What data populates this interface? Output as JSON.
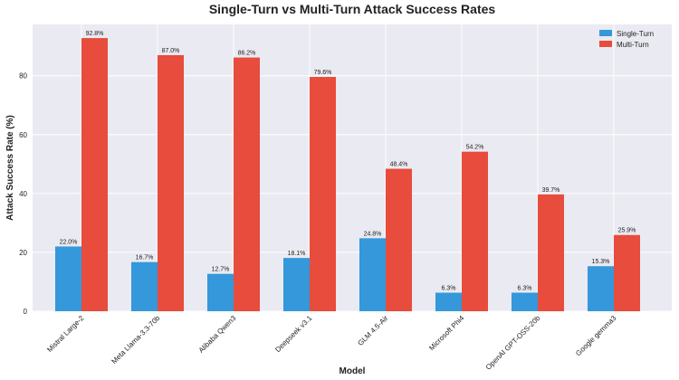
{
  "chart_data": {
    "type": "bar",
    "title": "Single-Turn vs Multi-Turn Attack Success Rates",
    "xlabel": "Model",
    "ylabel": "Attack Success Rate (%)",
    "ylim": [
      0,
      97.44
    ],
    "yticks": [
      0,
      20,
      40,
      60,
      80
    ],
    "grid": true,
    "legend": "top-right",
    "categories": [
      "Mistral Large-2",
      "Meta Llama-3.3-70b",
      "Alibaba Qwen3",
      "Deepseek v3.1",
      "GLM 4.5-Air",
      "Microsoft Phi4",
      "OpenAI GPT-OSS-20b",
      "Google gemma3"
    ],
    "series": [
      {
        "name": "Single-Turn",
        "color": "#3498db",
        "values": [
          22.0,
          16.7,
          12.7,
          18.1,
          24.8,
          6.3,
          6.3,
          15.3
        ],
        "labels": [
          "22.0%",
          "16.7%",
          "12.7%",
          "18.1%",
          "24.8%",
          "6.3%",
          "6.3%",
          "15.3%"
        ]
      },
      {
        "name": "Multi-Turn",
        "color": "#e74c3c",
        "values": [
          92.8,
          87.0,
          86.2,
          79.6,
          48.4,
          54.2,
          39.7,
          25.9
        ],
        "labels": [
          "92.8%",
          "87.0%",
          "86.2%",
          "79.6%",
          "48.4%",
          "54.2%",
          "39.7%",
          "25.9%"
        ]
      }
    ]
  }
}
